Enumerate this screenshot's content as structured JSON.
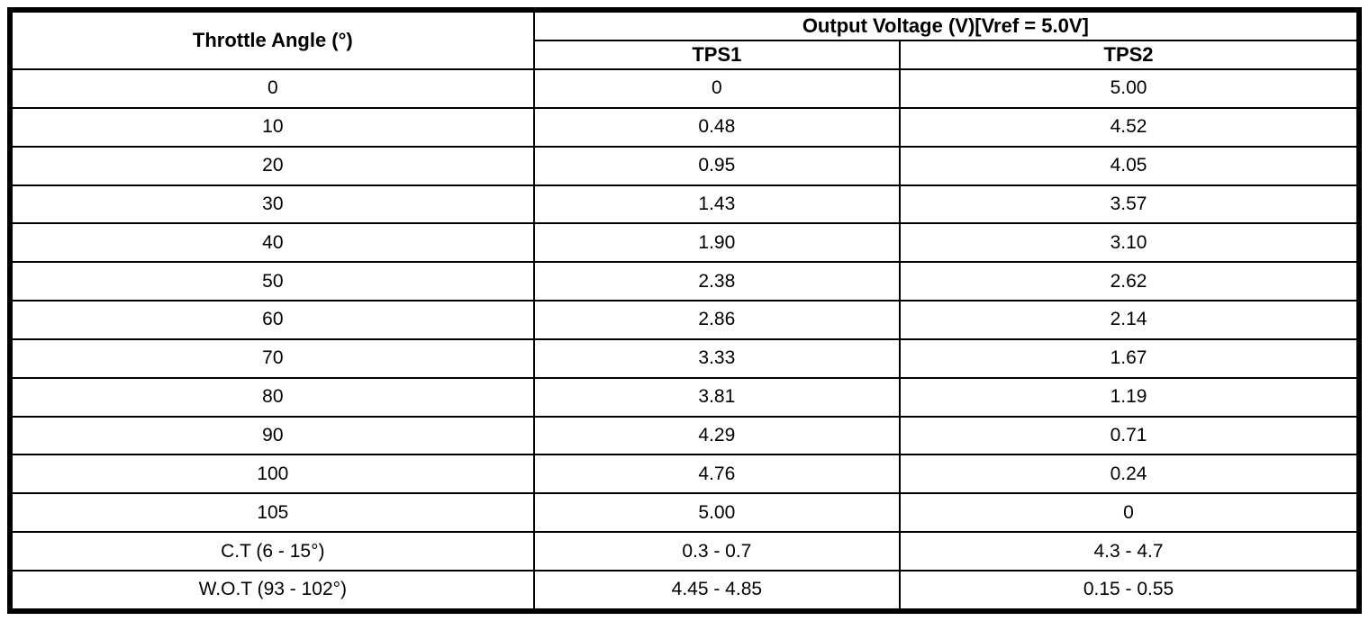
{
  "table": {
    "header": {
      "angle_col": "Throttle Angle (°)",
      "voltage_group": "Output Voltage (V)[Vref = 5.0V]",
      "tps1_col": "TPS1",
      "tps2_col": "TPS2"
    },
    "rows": [
      [
        "0",
        "0",
        "5.00"
      ],
      [
        "10",
        "0.48",
        "4.52"
      ],
      [
        "20",
        "0.95",
        "4.05"
      ],
      [
        "30",
        "1.43",
        "3.57"
      ],
      [
        "40",
        "1.90",
        "3.10"
      ],
      [
        "50",
        "2.38",
        "2.62"
      ],
      [
        "60",
        "2.86",
        "2.14"
      ],
      [
        "70",
        "3.33",
        "1.67"
      ],
      [
        "80",
        "3.81",
        "1.19"
      ],
      [
        "90",
        "4.29",
        "0.71"
      ],
      [
        "100",
        "4.76",
        "0.24"
      ],
      [
        "105",
        "5.00",
        "0"
      ],
      [
        "C.T (6 - 15°)",
        "0.3 - 0.7",
        "4.3 - 4.7"
      ],
      [
        "W.O.T (93 - 102°)",
        "4.45 - 4.85",
        "0.15 - 0.55"
      ]
    ]
  }
}
